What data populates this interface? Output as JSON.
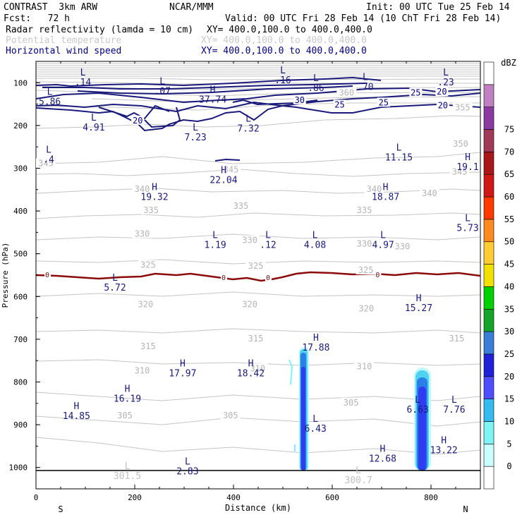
{
  "header": {
    "model": "CONTRAST  3km ARW",
    "org": "NCAR/MMM",
    "init": "Init: 00 UTC Tue 25 Feb 14",
    "fcst": "Fcst:   72 h",
    "valid": "Valid: 00 UTC Fri 28 Feb 14 (10 ChT Fri 28 Feb 14)"
  },
  "fields": [
    {
      "name": "Radar reflectivity (lamda = 10 cm)",
      "xy": "XY= 400.0,100.0 to 400.0,400.0",
      "color": "#000000"
    },
    {
      "name": "Potential temperature",
      "xy": "XY= 400.0,100.0 to 400.0,400.0",
      "color": "#c8c8c8"
    },
    {
      "name": "Horizontal wind speed",
      "xy": "XY= 400.0,100.0 to 400.0,400.0",
      "color": "#000080"
    }
  ],
  "chart_data": {
    "type": "cross-section",
    "xlabel": "Distance (km)",
    "ylabel": "Pressure (hPa)",
    "xlim": [
      0,
      900
    ],
    "ylim": [
      1050,
      50
    ],
    "x_ticks": [
      0,
      200,
      400,
      600,
      800
    ],
    "x_tick_labels": [
      "0",
      "200",
      "400",
      "600",
      "800"
    ],
    "y_ticks": [
      100,
      200,
      300,
      400,
      500,
      600,
      700,
      800,
      900,
      1000
    ],
    "y_tick_labels": [
      "100",
      "200",
      "300",
      "400",
      "500",
      "600",
      "700",
      "800",
      "900",
      "1000"
    ],
    "left_end_label": "S",
    "right_end_label": "N",
    "colorbar": {
      "title": "dBZ",
      "levels": [
        "0",
        "5",
        "10",
        "15",
        "20",
        "25",
        "30",
        "35",
        "40",
        "45",
        "50",
        "55",
        "60",
        "65",
        "70",
        "75"
      ],
      "colors": [
        "#ffffff",
        "#c8fefe",
        "#7ff4f4",
        "#35bbf0",
        "#4e4eff",
        "#2020d8",
        "#3a7ed8",
        "#16a32a",
        "#00d000",
        "#f2e000",
        "#ffcc33",
        "#ff8a20",
        "#ff3a00",
        "#d01818",
        "#a81818",
        "#a03a58",
        "#8a3aa0",
        "#c07fc0",
        "#ffffff"
      ]
    },
    "theta_labels": [
      {
        "text": "355",
        "x": 864,
        "p": 160
      },
      {
        "text": "350",
        "x": 860,
        "p": 245
      },
      {
        "text": "345",
        "x": 858,
        "p": 310
      },
      {
        "text": "345",
        "x": 0,
        "p": 290
      },
      {
        "text": "345",
        "x": 395,
        "p": 305
      },
      {
        "text": "340",
        "x": 215,
        "p": 350
      },
      {
        "text": "340",
        "x": 685,
        "p": 350
      },
      {
        "text": "340",
        "x": 797,
        "p": 360
      },
      {
        "text": "335",
        "x": 233,
        "p": 400
      },
      {
        "text": "335",
        "x": 415,
        "p": 390
      },
      {
        "text": "335",
        "x": 665,
        "p": 400
      },
      {
        "text": "330",
        "x": 215,
        "p": 455
      },
      {
        "text": "330",
        "x": 433,
        "p": 470
      },
      {
        "text": "330",
        "x": 665,
        "p": 478
      },
      {
        "text": "330",
        "x": 742,
        "p": 485
      },
      {
        "text": "325",
        "x": 227,
        "p": 528
      },
      {
        "text": "325",
        "x": 445,
        "p": 530
      },
      {
        "text": "325",
        "x": 668,
        "p": 540
      },
      {
        "text": "320",
        "x": 222,
        "p": 620
      },
      {
        "text": "320",
        "x": 433,
        "p": 620
      },
      {
        "text": "320",
        "x": 669,
        "p": 630
      },
      {
        "text": "315",
        "x": 227,
        "p": 718
      },
      {
        "text": "315",
        "x": 445,
        "p": 700
      },
      {
        "text": "315",
        "x": 852,
        "p": 700
      },
      {
        "text": "310",
        "x": 215,
        "p": 775
      },
      {
        "text": "310",
        "x": 449,
        "p": 770
      },
      {
        "text": "310",
        "x": 665,
        "p": 765
      },
      {
        "text": "305",
        "x": 180,
        "p": 880
      },
      {
        "text": "305",
        "x": 394,
        "p": 880
      },
      {
        "text": "305",
        "x": 638,
        "p": 850
      },
      {
        "text": "360",
        "x": 629,
        "p": 125
      }
    ],
    "wind_labels": [
      {
        "text": "25",
        "x": 769,
        "p": 125
      },
      {
        "text": "20",
        "x": 822,
        "p": 123
      },
      {
        "text": "30",
        "x": 534,
        "p": 142
      },
      {
        "text": "25",
        "x": 615,
        "p": 153
      },
      {
        "text": "25",
        "x": 704,
        "p": 148
      },
      {
        "text": "20",
        "x": 824,
        "p": 155
      },
      {
        "text": "20",
        "x": 206,
        "p": 190
      }
    ],
    "zero_labels": [
      {
        "text": "0",
        "x": 22,
        "p": 550
      },
      {
        "text": "0",
        "x": 380,
        "p": 557
      },
      {
        "text": "0",
        "x": 470,
        "p": 557
      },
      {
        "text": "0",
        "x": 692,
        "p": 550
      }
    ],
    "extrema": [
      {
        "type": "L",
        "value": ".14",
        "x": 95,
        "p": 90
      },
      {
        "type": "L",
        "value": ".07",
        "x": 256,
        "p": 110
      },
      {
        "type": "L",
        "value": ".16",
        "x": 500,
        "p": 85
      },
      {
        "type": "L",
        "value": ".86",
        "x": 567,
        "p": 103
      },
      {
        "type": "L",
        "value": ".70",
        "x": 667,
        "p": 100
      },
      {
        "type": "L",
        "value": ".23",
        "x": 830,
        "p": 90
      },
      {
        "type": "H",
        "value": "37.74",
        "x": 358,
        "p": 130
      },
      {
        "type": "L",
        "value": "5.86",
        "x": 28,
        "p": 135
      },
      {
        "type": "L",
        "value": "4.91",
        "x": 117,
        "p": 195
      },
      {
        "type": "L",
        "value": "7.23",
        "x": 323,
        "p": 218
      },
      {
        "type": "L",
        "value": "7.32",
        "x": 430,
        "p": 198
      },
      {
        "type": "L",
        "value": "11.15",
        "x": 735,
        "p": 265
      },
      {
        "type": "H",
        "value": "19.1",
        "x": 875,
        "p": 288
      },
      {
        "type": "L",
        "value": ".4",
        "x": 15,
        "p": 270
      },
      {
        "type": "H",
        "value": "22.04",
        "x": 380,
        "p": 318
      },
      {
        "type": "H",
        "value": "19.32",
        "x": 240,
        "p": 358
      },
      {
        "type": "H",
        "value": "18.87",
        "x": 708,
        "p": 358
      },
      {
        "type": "L",
        "value": "5.73",
        "x": 880,
        "p": 430
      },
      {
        "type": "L",
        "value": "1.19",
        "x": 363,
        "p": 470
      },
      {
        "type": "L",
        "value": ".12",
        "x": 470,
        "p": 470
      },
      {
        "type": "L",
        "value": "4.08",
        "x": 565,
        "p": 470
      },
      {
        "type": "L",
        "value": "4.97",
        "x": 703,
        "p": 470
      },
      {
        "type": "L",
        "value": "5.72",
        "x": 160,
        "p": 570
      },
      {
        "type": "H",
        "value": "15.27",
        "x": 775,
        "p": 618
      },
      {
        "type": "H",
        "value": "17.88",
        "x": 567,
        "p": 710
      },
      {
        "type": "H",
        "value": "17.97",
        "x": 297,
        "p": 770
      },
      {
        "type": "H",
        "value": "18.42",
        "x": 435,
        "p": 770
      },
      {
        "type": "H",
        "value": "16.19",
        "x": 185,
        "p": 830
      },
      {
        "type": "L",
        "value": "6.63",
        "x": 773,
        "p": 855
      },
      {
        "type": "L",
        "value": "7.76",
        "x": 847,
        "p": 855
      },
      {
        "type": "H",
        "value": "14.85",
        "x": 82,
        "p": 870
      },
      {
        "type": "L",
        "value": "6.43",
        "x": 566,
        "p": 900
      },
      {
        "type": "H",
        "value": "13.22",
        "x": 826,
        "p": 950
      },
      {
        "type": "H",
        "value": "12.68",
        "x": 702,
        "p": 970
      },
      {
        "type": "L",
        "value": "2.83",
        "x": 307,
        "p": 1000
      },
      {
        "type": "L",
        "value": "301.5",
        "x": 185,
        "p": 1010
      },
      {
        "type": "L",
        "value": "300.7",
        "x": 653,
        "p": 1020
      }
    ]
  }
}
